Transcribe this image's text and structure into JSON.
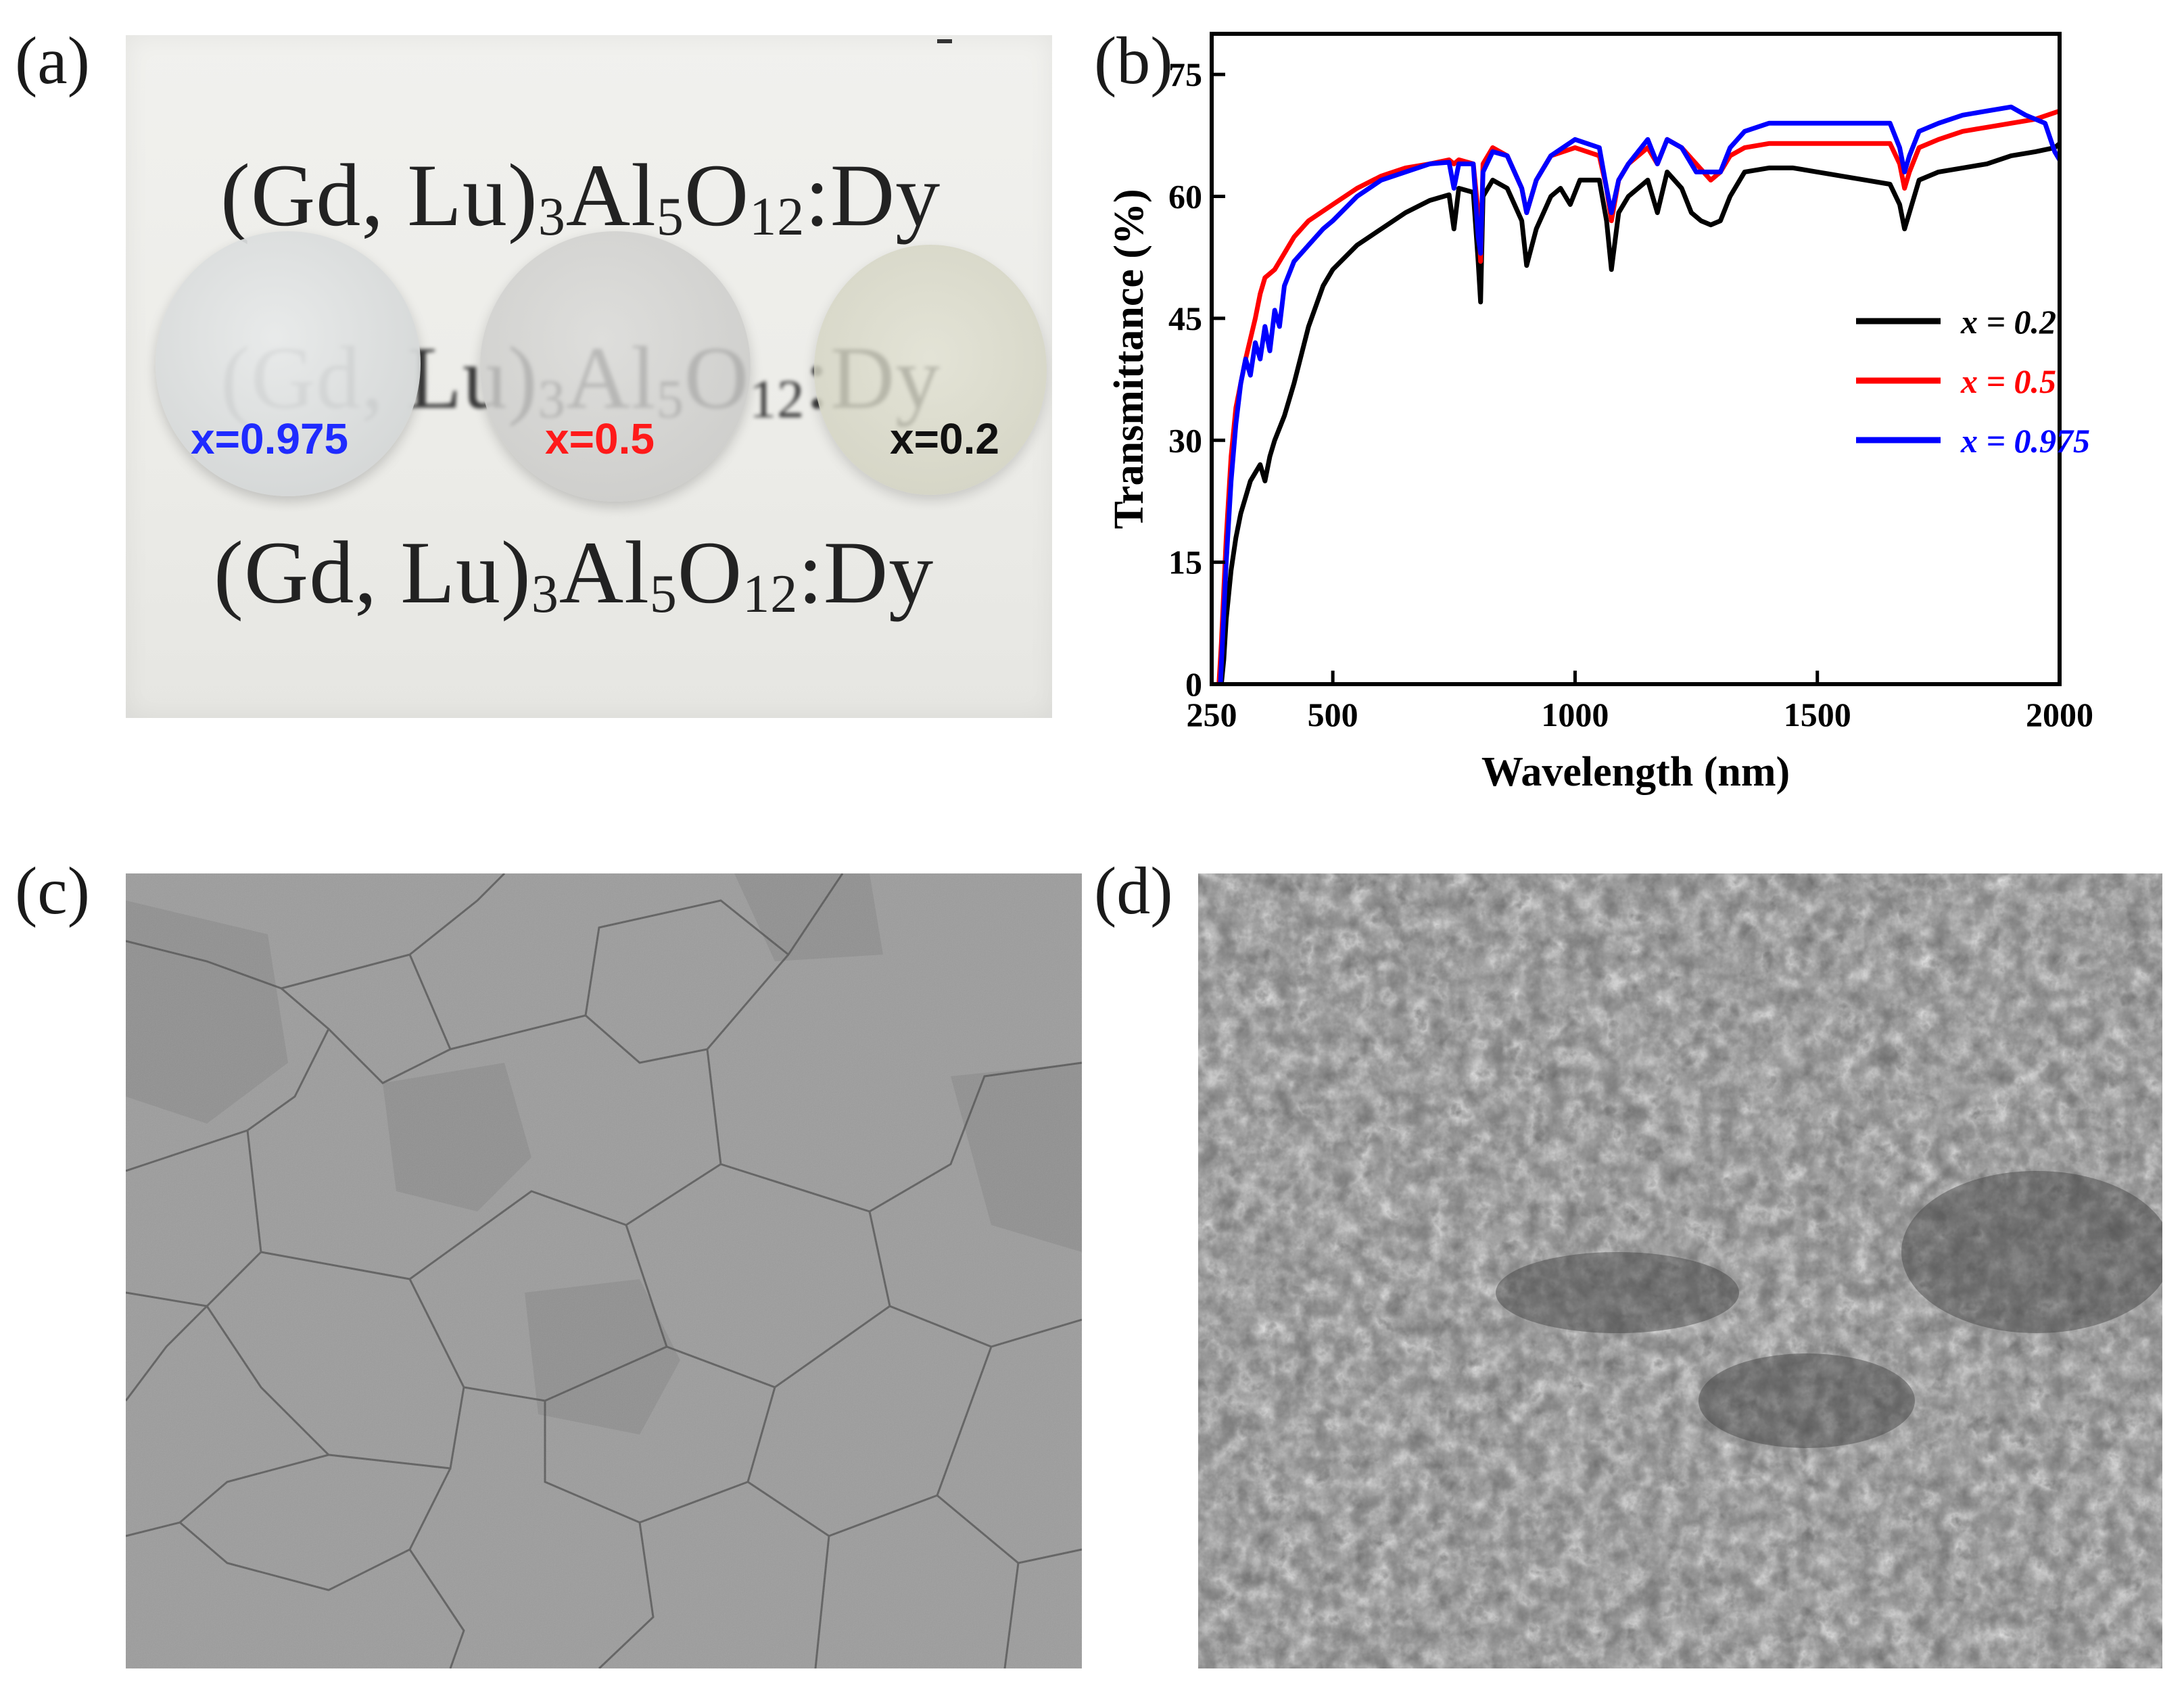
{
  "panels": {
    "a": {
      "label": "(a)",
      "printed_formula_parts": [
        "(Gd, Lu)",
        "3",
        "Al",
        "5",
        "O",
        "12",
        ":Dy"
      ],
      "samples": [
        {
          "text": "x=0.975",
          "color": "#1f2bff"
        },
        {
          "text": "x=0.5",
          "color": "#ff1a1a"
        },
        {
          "text": "x=0.2",
          "color": "#111111"
        }
      ]
    },
    "b": {
      "label": "(b)"
    },
    "c": {
      "label": "(c)"
    },
    "d": {
      "label": "(d)"
    }
  },
  "chart_data": {
    "type": "line",
    "title": "",
    "xlabel": "Wavelength (nm)",
    "ylabel": "Transmittance (%)",
    "xlim": [
      250,
      2000
    ],
    "ylim": [
      0,
      80
    ],
    "xticks": [
      250,
      500,
      1000,
      1500,
      2000
    ],
    "yticks": [
      0,
      15,
      30,
      45,
      60,
      75
    ],
    "grid": false,
    "legend_position": "center-right",
    "series": [
      {
        "name": "x = 0.2",
        "color": "#000000",
        "points": [
          [
            270,
            0
          ],
          [
            275,
            3
          ],
          [
            280,
            8
          ],
          [
            290,
            14
          ],
          [
            300,
            18
          ],
          [
            310,
            21
          ],
          [
            320,
            23
          ],
          [
            330,
            25
          ],
          [
            340,
            26
          ],
          [
            350,
            27
          ],
          [
            360,
            25
          ],
          [
            370,
            28
          ],
          [
            380,
            30
          ],
          [
            400,
            33
          ],
          [
            420,
            37
          ],
          [
            450,
            44
          ],
          [
            480,
            49
          ],
          [
            500,
            51
          ],
          [
            550,
            54
          ],
          [
            600,
            56
          ],
          [
            650,
            58
          ],
          [
            700,
            59.5
          ],
          [
            740,
            60.2
          ],
          [
            750,
            56
          ],
          [
            760,
            61
          ],
          [
            790,
            60.5
          ],
          [
            800,
            52
          ],
          [
            805,
            47
          ],
          [
            810,
            60
          ],
          [
            830,
            62
          ],
          [
            860,
            61
          ],
          [
            890,
            57
          ],
          [
            900,
            51.5
          ],
          [
            920,
            56
          ],
          [
            950,
            60
          ],
          [
            970,
            61
          ],
          [
            990,
            59
          ],
          [
            1010,
            62
          ],
          [
            1050,
            62
          ],
          [
            1065,
            57
          ],
          [
            1075,
            51
          ],
          [
            1090,
            58
          ],
          [
            1110,
            60
          ],
          [
            1130,
            61
          ],
          [
            1150,
            62
          ],
          [
            1170,
            58
          ],
          [
            1190,
            63
          ],
          [
            1220,
            61
          ],
          [
            1240,
            58
          ],
          [
            1260,
            57
          ],
          [
            1280,
            56.5
          ],
          [
            1300,
            57
          ],
          [
            1320,
            60
          ],
          [
            1350,
            63
          ],
          [
            1400,
            63.5
          ],
          [
            1450,
            63.5
          ],
          [
            1500,
            63
          ],
          [
            1550,
            62.5
          ],
          [
            1600,
            62
          ],
          [
            1650,
            61.5
          ],
          [
            1670,
            59
          ],
          [
            1680,
            56
          ],
          [
            1690,
            58
          ],
          [
            1710,
            62
          ],
          [
            1750,
            63
          ],
          [
            1800,
            63.5
          ],
          [
            1850,
            64
          ],
          [
            1900,
            65
          ],
          [
            1950,
            65.5
          ],
          [
            1990,
            66
          ],
          [
            2000,
            66.5
          ]
        ]
      },
      {
        "name": "x = 0.5",
        "color": "#ff0000",
        "points": [
          [
            265,
            0
          ],
          [
            270,
            5
          ],
          [
            280,
            18
          ],
          [
            290,
            28
          ],
          [
            300,
            34
          ],
          [
            320,
            40
          ],
          [
            340,
            45
          ],
          [
            350,
            48
          ],
          [
            360,
            50
          ],
          [
            380,
            51
          ],
          [
            400,
            53
          ],
          [
            420,
            55
          ],
          [
            450,
            57
          ],
          [
            500,
            59
          ],
          [
            550,
            61
          ],
          [
            600,
            62.5
          ],
          [
            650,
            63.5
          ],
          [
            700,
            64
          ],
          [
            740,
            64.5
          ],
          [
            750,
            64
          ],
          [
            760,
            64.5
          ],
          [
            790,
            64
          ],
          [
            800,
            58
          ],
          [
            805,
            52
          ],
          [
            810,
            64
          ],
          [
            830,
            66
          ],
          [
            860,
            65
          ],
          [
            890,
            61
          ],
          [
            900,
            58
          ],
          [
            920,
            62
          ],
          [
            950,
            65
          ],
          [
            1000,
            66
          ],
          [
            1050,
            65
          ],
          [
            1065,
            61
          ],
          [
            1075,
            57
          ],
          [
            1090,
            62
          ],
          [
            1110,
            64
          ],
          [
            1150,
            66
          ],
          [
            1170,
            64
          ],
          [
            1190,
            67
          ],
          [
            1220,
            66
          ],
          [
            1250,
            64
          ],
          [
            1280,
            62
          ],
          [
            1300,
            63
          ],
          [
            1320,
            65
          ],
          [
            1350,
            66
          ],
          [
            1400,
            66.5
          ],
          [
            1450,
            66.5
          ],
          [
            1500,
            66.5
          ],
          [
            1550,
            66.5
          ],
          [
            1600,
            66.5
          ],
          [
            1650,
            66.5
          ],
          [
            1670,
            64
          ],
          [
            1680,
            61
          ],
          [
            1690,
            63
          ],
          [
            1710,
            66
          ],
          [
            1750,
            67
          ],
          [
            1800,
            68
          ],
          [
            1850,
            68.5
          ],
          [
            1900,
            69
          ],
          [
            1950,
            69.5
          ],
          [
            2000,
            70.5
          ]
        ]
      },
      {
        "name": "x = 0.975",
        "color": "#0000ff",
        "points": [
          [
            268,
            0
          ],
          [
            272,
            5
          ],
          [
            280,
            15
          ],
          [
            290,
            25
          ],
          [
            300,
            32
          ],
          [
            310,
            37
          ],
          [
            320,
            40
          ],
          [
            330,
            38
          ],
          [
            340,
            42
          ],
          [
            350,
            40
          ],
          [
            360,
            44
          ],
          [
            370,
            41
          ],
          [
            380,
            46
          ],
          [
            390,
            44
          ],
          [
            400,
            49
          ],
          [
            420,
            52
          ],
          [
            450,
            54
          ],
          [
            480,
            56
          ],
          [
            500,
            57
          ],
          [
            550,
            60
          ],
          [
            600,
            62
          ],
          [
            650,
            63
          ],
          [
            700,
            64
          ],
          [
            740,
            64.2
          ],
          [
            750,
            61
          ],
          [
            760,
            64
          ],
          [
            790,
            64
          ],
          [
            800,
            55
          ],
          [
            805,
            53
          ],
          [
            810,
            63
          ],
          [
            830,
            65.5
          ],
          [
            860,
            65
          ],
          [
            890,
            61
          ],
          [
            900,
            58
          ],
          [
            920,
            62
          ],
          [
            950,
            65
          ],
          [
            1000,
            67
          ],
          [
            1050,
            66
          ],
          [
            1065,
            61
          ],
          [
            1075,
            58
          ],
          [
            1090,
            62
          ],
          [
            1110,
            64
          ],
          [
            1150,
            67
          ],
          [
            1170,
            64
          ],
          [
            1190,
            67
          ],
          [
            1220,
            66
          ],
          [
            1250,
            63
          ],
          [
            1280,
            63
          ],
          [
            1300,
            63
          ],
          [
            1320,
            66
          ],
          [
            1350,
            68
          ],
          [
            1400,
            69
          ],
          [
            1450,
            69
          ],
          [
            1500,
            69
          ],
          [
            1550,
            69
          ],
          [
            1600,
            69
          ],
          [
            1650,
            69
          ],
          [
            1670,
            66
          ],
          [
            1680,
            63
          ],
          [
            1690,
            65
          ],
          [
            1710,
            68
          ],
          [
            1750,
            69
          ],
          [
            1800,
            70
          ],
          [
            1850,
            70.5
          ],
          [
            1900,
            71
          ],
          [
            1930,
            70
          ],
          [
            1950,
            69.5
          ],
          [
            1970,
            69
          ],
          [
            1990,
            65.5
          ],
          [
            2000,
            64.5
          ]
        ]
      }
    ]
  }
}
